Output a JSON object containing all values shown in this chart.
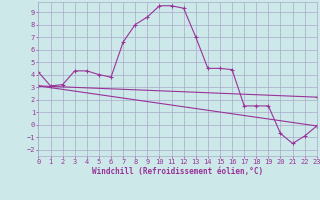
{
  "xlabel": "Windchill (Refroidissement éolien,°C)",
  "background_color": "#cce8e8",
  "grid_color": "#aaaacc",
  "line_color": "#993399",
  "xlim": [
    0,
    23
  ],
  "ylim": [
    -2.5,
    9.8
  ],
  "yticks": [
    -2,
    -1,
    0,
    1,
    2,
    3,
    4,
    5,
    6,
    7,
    8,
    9
  ],
  "xticks": [
    0,
    1,
    2,
    3,
    4,
    5,
    6,
    7,
    8,
    9,
    10,
    11,
    12,
    13,
    14,
    15,
    16,
    17,
    18,
    19,
    20,
    21,
    22,
    23
  ],
  "curve1_x": [
    0,
    1,
    2,
    3,
    4,
    5,
    6,
    7,
    8,
    9,
    10,
    11,
    12,
    13,
    14,
    15,
    16,
    17,
    18,
    19,
    20,
    21,
    22,
    23
  ],
  "curve1_y": [
    4.2,
    3.1,
    3.2,
    4.3,
    4.3,
    4.0,
    3.8,
    6.6,
    8.0,
    8.6,
    9.5,
    9.5,
    9.3,
    7.0,
    4.5,
    4.5,
    4.4,
    1.5,
    1.5,
    1.5,
    -0.7,
    -1.5,
    -0.9,
    -0.1
  ],
  "curve2_x": [
    0,
    23
  ],
  "curve2_y": [
    3.1,
    2.2
  ],
  "curve3_x": [
    0,
    23
  ],
  "curve3_y": [
    3.1,
    -0.1
  ]
}
